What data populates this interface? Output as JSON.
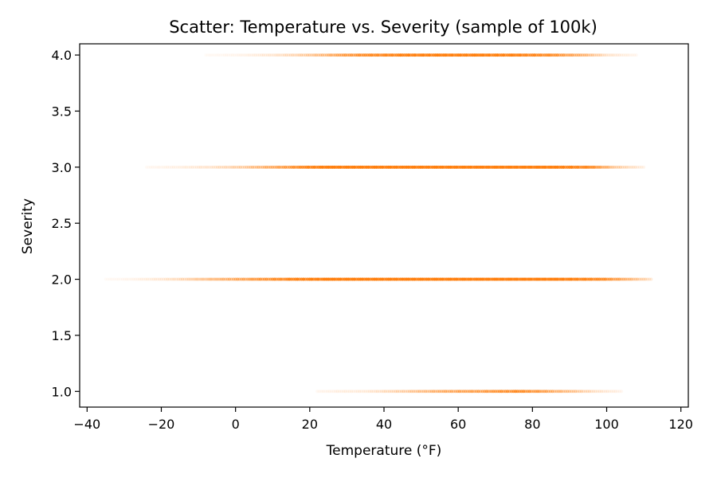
{
  "chart_data": {
    "type": "scatter",
    "title": "Scatter: Temperature vs. Severity (sample of 100k)",
    "xlabel": "Temperature (°F)",
    "ylabel": "Severity",
    "xlim": [
      -42,
      122
    ],
    "ylim": [
      0.86,
      4.1
    ],
    "x_ticks": [
      -40,
      -20,
      0,
      20,
      40,
      60,
      80,
      100,
      120
    ],
    "x_tick_labels": [
      "−40",
      "−20",
      "0",
      "20",
      "40",
      "60",
      "80",
      "100",
      "120"
    ],
    "y_ticks": [
      1.0,
      1.5,
      2.0,
      2.5,
      3.0,
      3.5,
      4.0
    ],
    "y_tick_labels": [
      "1.0",
      "1.5",
      "2.0",
      "2.5",
      "3.0",
      "3.5",
      "4.0"
    ],
    "grid": false,
    "point_color": "#ff7f0e",
    "series": [
      {
        "severity": 1,
        "temperature_range": [
          20,
          108
        ],
        "dense_range": [
          40,
          100
        ],
        "points": [
          {
            "x": 22,
            "y": 1,
            "density": 0.05
          },
          {
            "x": 28,
            "y": 1,
            "density": 0.08
          },
          {
            "x": 35,
            "y": 1,
            "density": 0.1
          },
          {
            "x": 42,
            "y": 1,
            "density": 0.2
          },
          {
            "x": 48,
            "y": 1,
            "density": 0.3
          },
          {
            "x": 55,
            "y": 1,
            "density": 0.45
          },
          {
            "x": 62,
            "y": 1,
            "density": 0.55
          },
          {
            "x": 70,
            "y": 1,
            "density": 0.65
          },
          {
            "x": 76,
            "y": 1,
            "density": 0.75
          },
          {
            "x": 82,
            "y": 1,
            "density": 0.6
          },
          {
            "x": 90,
            "y": 1,
            "density": 0.35
          },
          {
            "x": 97,
            "y": 1,
            "density": 0.15
          },
          {
            "x": 104,
            "y": 1,
            "density": 0.06
          }
        ]
      },
      {
        "severity": 2,
        "temperature_range": [
          -36,
          114
        ],
        "dense_range": [
          -12,
          108
        ],
        "points": [
          {
            "x": -35,
            "y": 2,
            "density": 0.03
          },
          {
            "x": -27,
            "y": 2,
            "density": 0.06
          },
          {
            "x": -20,
            "y": 2,
            "density": 0.12
          },
          {
            "x": -12,
            "y": 2,
            "density": 0.25
          },
          {
            "x": -5,
            "y": 2,
            "density": 0.4
          },
          {
            "x": 5,
            "y": 2,
            "density": 0.6
          },
          {
            "x": 15,
            "y": 2,
            "density": 0.85
          },
          {
            "x": 25,
            "y": 2,
            "density": 1.0
          },
          {
            "x": 45,
            "y": 2,
            "density": 1.0
          },
          {
            "x": 65,
            "y": 2,
            "density": 1.0
          },
          {
            "x": 85,
            "y": 2,
            "density": 1.0
          },
          {
            "x": 98,
            "y": 2,
            "density": 0.8
          },
          {
            "x": 105,
            "y": 2,
            "density": 0.45
          },
          {
            "x": 112,
            "y": 2,
            "density": 0.15
          }
        ]
      },
      {
        "severity": 3,
        "temperature_range": [
          -24,
          112
        ],
        "dense_range": [
          15,
          97
        ],
        "points": [
          {
            "x": -24,
            "y": 3,
            "density": 0.04
          },
          {
            "x": -15,
            "y": 3,
            "density": 0.08
          },
          {
            "x": -6,
            "y": 3,
            "density": 0.15
          },
          {
            "x": 3,
            "y": 3,
            "density": 0.3
          },
          {
            "x": 10,
            "y": 3,
            "density": 0.5
          },
          {
            "x": 18,
            "y": 3,
            "density": 0.8
          },
          {
            "x": 25,
            "y": 3,
            "density": 1.0
          },
          {
            "x": 45,
            "y": 3,
            "density": 1.0
          },
          {
            "x": 65,
            "y": 3,
            "density": 1.0
          },
          {
            "x": 85,
            "y": 3,
            "density": 1.0
          },
          {
            "x": 95,
            "y": 3,
            "density": 0.8
          },
          {
            "x": 102,
            "y": 3,
            "density": 0.3
          },
          {
            "x": 110,
            "y": 3,
            "density": 0.08
          }
        ]
      },
      {
        "severity": 4,
        "temperature_range": [
          -8,
          110
        ],
        "dense_range": [
          25,
          92
        ],
        "points": [
          {
            "x": -8,
            "y": 4,
            "density": 0.03
          },
          {
            "x": 2,
            "y": 4,
            "density": 0.06
          },
          {
            "x": 12,
            "y": 4,
            "density": 0.15
          },
          {
            "x": 20,
            "y": 4,
            "density": 0.3
          },
          {
            "x": 28,
            "y": 4,
            "density": 0.55
          },
          {
            "x": 35,
            "y": 4,
            "density": 0.75
          },
          {
            "x": 45,
            "y": 4,
            "density": 0.9
          },
          {
            "x": 55,
            "y": 4,
            "density": 0.95
          },
          {
            "x": 65,
            "y": 4,
            "density": 0.95
          },
          {
            "x": 75,
            "y": 4,
            "density": 0.9
          },
          {
            "x": 85,
            "y": 4,
            "density": 0.75
          },
          {
            "x": 93,
            "y": 4,
            "density": 0.45
          },
          {
            "x": 100,
            "y": 4,
            "density": 0.15
          },
          {
            "x": 108,
            "y": 4,
            "density": 0.05
          }
        ]
      }
    ]
  }
}
